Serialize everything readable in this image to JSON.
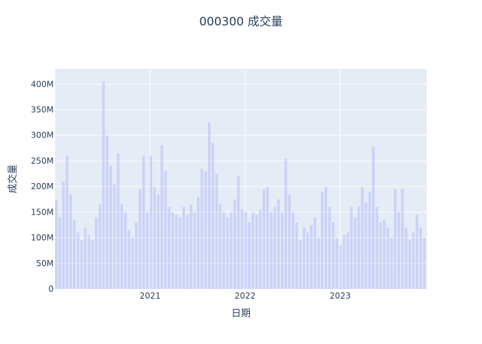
{
  "chart_data": {
    "type": "bar",
    "title": "000300 成交量",
    "xlabel": "日期",
    "ylabel": "成交量",
    "ylim": [
      0,
      430000000
    ],
    "y_ticks": [
      {
        "value": 0,
        "label": "0"
      },
      {
        "value": 50000000,
        "label": "50M"
      },
      {
        "value": 100000000,
        "label": "100M"
      },
      {
        "value": 150000000,
        "label": "150M"
      },
      {
        "value": 200000000,
        "label": "200M"
      },
      {
        "value": 250000000,
        "label": "250M"
      },
      {
        "value": 300000000,
        "label": "300M"
      },
      {
        "value": 350000000,
        "label": "350M"
      },
      {
        "value": 400000000,
        "label": "400M"
      }
    ],
    "xlim": [
      "2020-01-02",
      "2023-11-30"
    ],
    "x_ticks": [
      {
        "value": "2021-01-01",
        "label": "2021"
      },
      {
        "value": "2022-01-01",
        "label": "2022"
      },
      {
        "value": "2023-01-01",
        "label": "2023"
      }
    ],
    "grid": true,
    "colors": {
      "bar": "#636efa",
      "plot_bg": "#e5ecf6",
      "grid": "#ffffff",
      "text": "#2a3f5f"
    },
    "bar_opacity": 0.2,
    "series": [
      {
        "x": [
          "2020-01-06",
          "2020-01-20",
          "2020-02-03",
          "2020-02-17",
          "2020-03-02",
          "2020-03-16",
          "2020-03-30",
          "2020-04-13",
          "2020-04-27",
          "2020-05-11",
          "2020-05-25",
          "2020-06-08",
          "2020-06-22",
          "2020-07-06",
          "2020-07-20",
          "2020-08-03",
          "2020-08-17",
          "2020-08-31",
          "2020-09-14",
          "2020-09-28",
          "2020-10-12",
          "2020-10-26",
          "2020-11-09",
          "2020-11-23",
          "2020-12-07",
          "2020-12-21",
          "2021-01-04",
          "2021-01-18",
          "2021-02-01",
          "2021-02-15",
          "2021-03-01",
          "2021-03-15",
          "2021-03-29",
          "2021-04-12",
          "2021-04-26",
          "2021-05-10",
          "2021-05-24",
          "2021-06-07",
          "2021-06-21",
          "2021-07-05",
          "2021-07-19",
          "2021-08-02",
          "2021-08-16",
          "2021-08-30",
          "2021-09-13",
          "2021-09-27",
          "2021-10-11",
          "2021-10-25",
          "2021-11-08",
          "2021-11-22",
          "2021-12-06",
          "2021-12-20",
          "2022-01-03",
          "2022-01-17",
          "2022-01-31",
          "2022-02-14",
          "2022-02-28",
          "2022-03-14",
          "2022-03-28",
          "2022-04-11",
          "2022-04-25",
          "2022-05-09",
          "2022-05-23",
          "2022-06-06",
          "2022-06-20",
          "2022-07-04",
          "2022-07-18",
          "2022-08-01",
          "2022-08-15",
          "2022-08-29",
          "2022-09-12",
          "2022-09-26",
          "2022-10-10",
          "2022-10-24",
          "2022-11-07",
          "2022-11-21",
          "2022-12-05",
          "2022-12-19",
          "2023-01-02",
          "2023-01-16",
          "2023-01-30",
          "2023-02-13",
          "2023-02-27",
          "2023-03-13",
          "2023-03-27",
          "2023-04-10",
          "2023-04-24",
          "2023-05-08",
          "2023-05-22",
          "2023-06-05",
          "2023-06-19",
          "2023-07-03",
          "2023-07-17",
          "2023-07-31",
          "2023-08-14",
          "2023-08-28",
          "2023-09-11",
          "2023-09-25",
          "2023-10-09",
          "2023-10-23",
          "2023-11-06",
          "2023-11-20"
        ],
        "values": [
          175000000,
          140000000,
          210000000,
          260000000,
          185000000,
          135000000,
          110000000,
          95000000,
          120000000,
          105000000,
          95000000,
          140000000,
          165000000,
          405000000,
          300000000,
          240000000,
          205000000,
          265000000,
          165000000,
          150000000,
          115000000,
          100000000,
          130000000,
          195000000,
          260000000,
          150000000,
          260000000,
          200000000,
          185000000,
          280000000,
          230000000,
          160000000,
          150000000,
          145000000,
          140000000,
          160000000,
          145000000,
          165000000,
          150000000,
          180000000,
          235000000,
          230000000,
          325000000,
          285000000,
          225000000,
          165000000,
          150000000,
          140000000,
          150000000,
          175000000,
          220000000,
          155000000,
          150000000,
          130000000,
          150000000,
          145000000,
          155000000,
          195000000,
          200000000,
          150000000,
          160000000,
          175000000,
          150000000,
          255000000,
          185000000,
          150000000,
          130000000,
          95000000,
          120000000,
          110000000,
          125000000,
          140000000,
          100000000,
          190000000,
          200000000,
          160000000,
          130000000,
          100000000,
          85000000,
          105000000,
          110000000,
          160000000,
          140000000,
          160000000,
          200000000,
          170000000,
          190000000,
          278000000,
          160000000,
          130000000,
          135000000,
          120000000,
          100000000,
          195000000,
          150000000,
          195000000,
          120000000,
          95000000,
          110000000,
          145000000,
          120000000,
          100000000
        ]
      }
    ]
  }
}
